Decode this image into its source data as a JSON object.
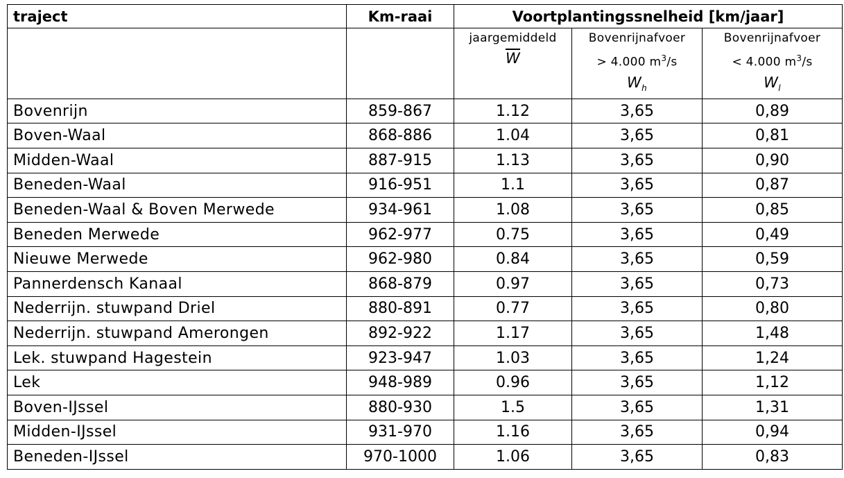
{
  "header": {
    "traject": "traject",
    "km_raai": "Km-raai",
    "voortplanting": "Voortplantingssnelheid [km/jaar]"
  },
  "subheader": {
    "col1_line1": "jaargemiddeld",
    "col1_symbol": "W",
    "col2_line1": "Bovenrijnafvoer",
    "col2_line2_prefix": "> 4.000 m",
    "col2_line2_sup": "3",
    "col2_line2_suffix": "/s",
    "col2_symbol": "W",
    "col2_symbol_sub": "h",
    "col3_line1": "Bovenrijnafvoer",
    "col3_line2_prefix": "< 4.000 m",
    "col3_line2_sup": "3",
    "col3_line2_suffix": "/s",
    "col3_symbol": "W",
    "col3_symbol_sub": "l"
  },
  "rows": [
    {
      "traject": "Bovenrijn",
      "km": "859-867",
      "w": "1.12",
      "wh": "3,65",
      "wl": "0,89"
    },
    {
      "traject": "Boven-Waal",
      "km": "868-886",
      "w": "1.04",
      "wh": "3,65",
      "wl": "0,81"
    },
    {
      "traject": "Midden-Waal",
      "km": "887-915",
      "w": "1.13",
      "wh": "3,65",
      "wl": "0,90"
    },
    {
      "traject": "Beneden-Waal",
      "km": "916-951",
      "w": "1.1",
      "wh": "3,65",
      "wl": "0,87"
    },
    {
      "traject": "Beneden-Waal & Boven Merwede",
      "km": "934-961",
      "w": "1.08",
      "wh": "3,65",
      "wl": "0,85"
    },
    {
      "traject": "Beneden Merwede",
      "km": "962-977",
      "w": "0.75",
      "wh": "3,65",
      "wl": "0,49"
    },
    {
      "traject": "Nieuwe Merwede",
      "km": "962-980",
      "w": "0.84",
      "wh": "3,65",
      "wl": "0,59"
    },
    {
      "traject": "Pannerdensch Kanaal",
      "km": "868-879",
      "w": "0.97",
      "wh": "3,65",
      "wl": "0,73"
    },
    {
      "traject": "Nederrijn. stuwpand Driel",
      "km": "880-891",
      "w": "0.77",
      "wh": "3,65",
      "wl": "0,80"
    },
    {
      "traject": "Nederrijn. stuwpand Amerongen",
      "km": "892-922",
      "w": "1.17",
      "wh": "3,65",
      "wl": "1,48"
    },
    {
      "traject": "Lek. stuwpand Hagestein",
      "km": "923-947",
      "w": "1.03",
      "wh": "3,65",
      "wl": "1,24"
    },
    {
      "traject": "Lek",
      "km": "948-989",
      "w": "0.96",
      "wh": "3,65",
      "wl": "1,12"
    },
    {
      "traject": "Boven-IJssel",
      "km": "880-930",
      "w": "1.5",
      "wh": "3,65",
      "wl": "1,31"
    },
    {
      "traject": "Midden-IJssel",
      "km": "931-970",
      "w": "1.16",
      "wh": "3,65",
      "wl": "0,94"
    },
    {
      "traject": "Beneden-IJssel",
      "km": "970-1000",
      "w": "1.06",
      "wh": "3,65",
      "wl": "0,83"
    }
  ]
}
